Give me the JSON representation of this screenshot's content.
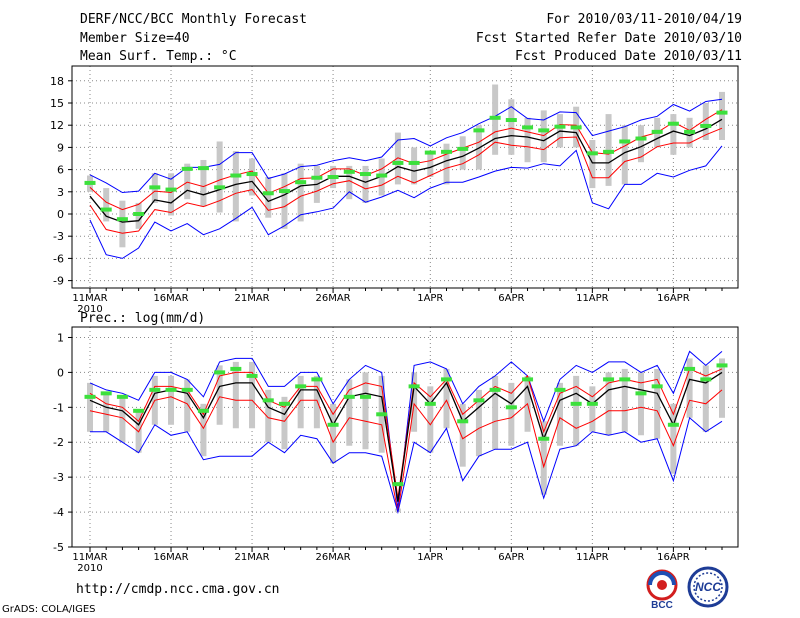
{
  "header": {
    "title": "DERF/NCC/BCC Monthly Forecast",
    "member_size": "Member Size=40",
    "variable": "Mean Surf. Temp.: °C",
    "period": "For 2010/03/11-2010/04/19",
    "fcst_started": "Fcst Started Refer Date 2010/03/10",
    "fcst_produced": "Fcst Produced Date 2010/03/11"
  },
  "footer": {
    "url": "http://cmdp.ncc.cma.gov.cn",
    "grads": "GrADS: COLA/IGES",
    "logo_bcc": "BCC",
    "logo_ncc": "NCC"
  },
  "chart_data": [
    {
      "type": "line",
      "title": "Mean Surf. Temp.: °C",
      "ylim": [
        -10,
        20
      ],
      "yticks": [
        -9,
        -6,
        -3,
        0,
        3,
        6,
        9,
        12,
        15,
        18
      ],
      "x_ticks": [
        {
          "day": 0,
          "label": "11MAR",
          "sub": "2010"
        },
        {
          "day": 5,
          "label": "16MAR"
        },
        {
          "day": 10,
          "label": "21MAR"
        },
        {
          "day": 15,
          "label": "26MAR"
        },
        {
          "day": 21,
          "label": "1APR"
        },
        {
          "day": 26,
          "label": "6APR"
        },
        {
          "day": 31,
          "label": "11APR"
        },
        {
          "day": 36,
          "label": "16APR"
        }
      ],
      "days": 40,
      "series": [
        {
          "name": "ensemble max",
          "color": "#0000ff",
          "values": [
            5.3,
            4.2,
            2.9,
            3.1,
            5.5,
            4.7,
            6.3,
            6.3,
            6.7,
            8.3,
            8.3,
            4.8,
            5.4,
            6.4,
            6.6,
            7.2,
            7.6,
            7.2,
            7.7,
            10.0,
            10.2,
            9.2,
            10.3,
            11.0,
            12.2,
            13.2,
            14.5,
            12.9,
            12.7,
            13.8,
            13.7,
            10.6,
            11.2,
            11.8,
            12.7,
            13.2,
            14.8,
            13.9,
            15.2,
            15.5
          ]
        },
        {
          "name": "upper band",
          "color": "#ff0000",
          "values": [
            3.6,
            1.6,
            0.6,
            1.3,
            3.1,
            2.9,
            4.3,
            3.7,
            4.6,
            5.3,
            5.8,
            2.8,
            3.7,
            4.8,
            4.9,
            6.1,
            6.1,
            5.2,
            6.1,
            7.6,
            6.8,
            7.2,
            8.1,
            8.9,
            9.7,
            11.1,
            11.6,
            11.1,
            10.6,
            12.1,
            12.0,
            8.3,
            8.1,
            9.2,
            10.4,
            11.0,
            12.4,
            11.3,
            12.8,
            14.1
          ]
        },
        {
          "name": "ensemble mean",
          "color": "#000000",
          "values": [
            2.4,
            -0.3,
            -1.1,
            -0.9,
            1.9,
            1.5,
            3.2,
            2.6,
            3.3,
            4.0,
            4.4,
            1.7,
            2.6,
            3.8,
            4.0,
            5.1,
            5.1,
            4.3,
            5.1,
            6.4,
            5.8,
            6.3,
            7.2,
            7.8,
            8.9,
            10.2,
            10.6,
            10.4,
            9.9,
            11.2,
            11.0,
            6.9,
            6.9,
            8.3,
            9.1,
            10.2,
            11.2,
            10.6,
            11.5,
            12.8
          ]
        },
        {
          "name": "lower band",
          "color": "#ff0000",
          "values": [
            1.2,
            -2.1,
            -2.6,
            -2.3,
            0.6,
            0.2,
            1.5,
            1.0,
            1.8,
            2.8,
            3.3,
            0.5,
            1.0,
            2.4,
            3.1,
            4.1,
            4.5,
            3.4,
            3.9,
            5.1,
            4.2,
            5.2,
            6.2,
            6.8,
            8.0,
            9.7,
            9.3,
            9.1,
            8.7,
            10.3,
            10.4,
            4.9,
            4.9,
            7.1,
            7.7,
            9.1,
            9.6,
            9.6,
            10.7,
            11.6
          ]
        },
        {
          "name": "ensemble min",
          "color": "#0000ff",
          "values": [
            -0.8,
            -5.5,
            -6.0,
            -4.6,
            -1.1,
            -2.3,
            -1.3,
            -2.8,
            -2.0,
            -0.6,
            0.9,
            -2.8,
            -1.6,
            -0.1,
            0.3,
            0.8,
            3.0,
            1.6,
            2.3,
            3.2,
            2.2,
            3.5,
            4.3,
            4.3,
            5.0,
            5.8,
            6.3,
            6.2,
            6.8,
            6.5,
            8.6,
            1.5,
            0.7,
            4.0,
            4.0,
            5.5,
            5.0,
            5.9,
            6.5,
            9.2
          ]
        }
      ],
      "observed_green": [
        4.2,
        0.6,
        -0.7,
        0.0,
        3.6,
        3.3,
        6.1,
        6.2,
        3.6,
        5.2,
        5.4,
        2.8,
        3.1,
        4.3,
        4.9,
        5.0,
        5.7,
        5.4,
        5.2,
        6.9,
        6.9,
        8.3,
        8.4,
        8.8,
        11.3,
        13.0,
        12.7,
        11.7,
        11.3,
        11.8,
        11.7,
        8.2,
        8.4,
        9.8,
        10.2,
        11.1,
        12.2,
        11.1,
        11.9,
        13.7
      ],
      "bars": [
        [
          3.0,
          5.2
        ],
        [
          -1.0,
          3.5
        ],
        [
          -4.5,
          1.8
        ],
        [
          -2.0,
          1.5
        ],
        [
          1.5,
          5.5
        ],
        [
          -0.2,
          5.5
        ],
        [
          2.0,
          6.8
        ],
        [
          1.0,
          7.3
        ],
        [
          0.2,
          9.8
        ],
        [
          -1.0,
          8.5
        ],
        [
          2.5,
          7.5
        ],
        [
          -0.5,
          5.0
        ],
        [
          -2.0,
          5.5
        ],
        [
          -1.0,
          6.8
        ],
        [
          1.5,
          6.5
        ],
        [
          3.5,
          6.5
        ],
        [
          2.0,
          6.5
        ],
        [
          1.5,
          6.5
        ],
        [
          2.5,
          7.5
        ],
        [
          4.0,
          11.0
        ],
        [
          4.0,
          9.0
        ],
        [
          5.0,
          8.5
        ],
        [
          4.0,
          9.5
        ],
        [
          6.0,
          10.5
        ],
        [
          6.0,
          12.0
        ],
        [
          8.0,
          17.5
        ],
        [
          8.0,
          15.5
        ],
        [
          7.0,
          13.0
        ],
        [
          7.0,
          14.0
        ],
        [
          9.0,
          13.5
        ],
        [
          9.0,
          14.5
        ],
        [
          3.5,
          10.0
        ],
        [
          3.8,
          13.5
        ],
        [
          4.0,
          12.0
        ],
        [
          7.0,
          12.0
        ],
        [
          9.0,
          13.0
        ],
        [
          8.0,
          13.5
        ],
        [
          9.0,
          13.0
        ],
        [
          10.0,
          15.0
        ],
        [
          10.0,
          16.5
        ]
      ]
    },
    {
      "type": "line",
      "title": "Prec.: log(mm/d)",
      "ylim": [
        -5,
        1.3
      ],
      "yticks": [
        -5,
        -4,
        -3,
        -2,
        -1,
        0,
        1
      ],
      "x_ticks": [
        {
          "day": 0,
          "label": "11MAR",
          "sub": "2010"
        },
        {
          "day": 5,
          "label": "16MAR"
        },
        {
          "day": 10,
          "label": "21MAR"
        },
        {
          "day": 15,
          "label": "26MAR"
        },
        {
          "day": 21,
          "label": "1APR"
        },
        {
          "day": 26,
          "label": "6APR"
        },
        {
          "day": 31,
          "label": "11APR"
        },
        {
          "day": 36,
          "label": "16APR"
        }
      ],
      "days": 40,
      "series": [
        {
          "name": "ensemble max",
          "color": "#0000ff",
          "values": [
            -0.3,
            -0.5,
            -0.6,
            -0.8,
            0.0,
            0.0,
            -0.2,
            -0.7,
            0.3,
            0.4,
            0.4,
            -0.4,
            -0.4,
            0.0,
            0.0,
            -0.9,
            -0.2,
            0.2,
            0.0,
            -3.9,
            0.2,
            0.3,
            0.1,
            -0.9,
            -0.4,
            -0.1,
            0.3,
            -0.1,
            -1.4,
            -0.2,
            0.2,
            0.0,
            0.3,
            0.3,
            0.0,
            0.2,
            -0.6,
            0.6,
            0.2,
            0.6
          ]
        },
        {
          "name": "upper band",
          "color": "#ff0000",
          "values": [
            -0.6,
            -0.9,
            -1.0,
            -1.4,
            -0.4,
            -0.4,
            -0.5,
            -1.2,
            -0.1,
            0.0,
            0.0,
            -0.8,
            -1.0,
            -0.4,
            -0.4,
            -1.2,
            -0.5,
            -0.3,
            -0.4,
            -3.6,
            -0.3,
            -0.7,
            -0.2,
            -1.2,
            -0.8,
            -0.4,
            -0.6,
            -0.1,
            -1.7,
            -0.6,
            -0.4,
            -0.7,
            -0.3,
            -0.2,
            -0.3,
            -0.2,
            -1.2,
            0.1,
            -0.1,
            0.1
          ]
        },
        {
          "name": "ensemble mean",
          "color": "#000000",
          "values": [
            -0.8,
            -1.0,
            -1.1,
            -1.5,
            -0.6,
            -0.5,
            -0.6,
            -1.3,
            -0.4,
            -0.3,
            -0.3,
            -1.0,
            -1.2,
            -0.5,
            -0.5,
            -1.5,
            -0.7,
            -0.6,
            -0.7,
            -3.7,
            -0.4,
            -0.9,
            -0.3,
            -1.4,
            -1.0,
            -0.6,
            -0.9,
            -0.4,
            -1.9,
            -0.8,
            -0.6,
            -0.9,
            -0.5,
            -0.4,
            -0.5,
            -0.6,
            -1.5,
            -0.2,
            -0.3,
            0.0
          ]
        },
        {
          "name": "lower band",
          "color": "#ff0000",
          "values": [
            -1.1,
            -1.2,
            -1.3,
            -1.7,
            -0.8,
            -0.7,
            -0.9,
            -1.6,
            -0.7,
            -0.8,
            -0.8,
            -1.3,
            -1.4,
            -0.8,
            -0.8,
            -2.0,
            -1.3,
            -1.4,
            -1.5,
            -4.0,
            -0.9,
            -1.5,
            -0.8,
            -1.9,
            -1.6,
            -1.4,
            -1.3,
            -0.9,
            -2.7,
            -1.3,
            -1.6,
            -1.4,
            -1.1,
            -1.1,
            -1.0,
            -1.1,
            -2.1,
            -0.8,
            -0.9,
            -0.5
          ]
        },
        {
          "name": "ensemble min",
          "color": "#0000ff",
          "values": [
            -1.7,
            -1.7,
            -2.0,
            -2.3,
            -1.5,
            -1.8,
            -1.7,
            -2.5,
            -2.4,
            -2.4,
            -2.4,
            -2.0,
            -2.3,
            -1.8,
            -1.9,
            -2.6,
            -2.3,
            -2.3,
            -2.4,
            -4.0,
            -2.0,
            -2.3,
            -1.6,
            -3.1,
            -2.4,
            -2.2,
            -2.2,
            -2.0,
            -3.6,
            -2.2,
            -2.1,
            -1.7,
            -1.8,
            -1.7,
            -2.0,
            -1.9,
            -3.1,
            -1.3,
            -1.7,
            -1.4
          ]
        }
      ],
      "observed_green": [
        -0.7,
        -0.6,
        -0.7,
        -1.1,
        -0.5,
        -0.5,
        -0.5,
        -1.1,
        0.0,
        0.1,
        -0.1,
        -0.8,
        -0.9,
        -0.4,
        -0.2,
        -1.5,
        -0.7,
        -0.7,
        -1.2,
        -3.2,
        -0.4,
        -0.9,
        -0.2,
        -1.4,
        -0.8,
        -0.5,
        -1.0,
        -0.2,
        -1.9,
        -0.5,
        -0.9,
        -0.9,
        -0.2,
        -0.2,
        -0.6,
        -0.4,
        -1.5,
        0.1,
        -0.2,
        0.2
      ]
    }
  ]
}
